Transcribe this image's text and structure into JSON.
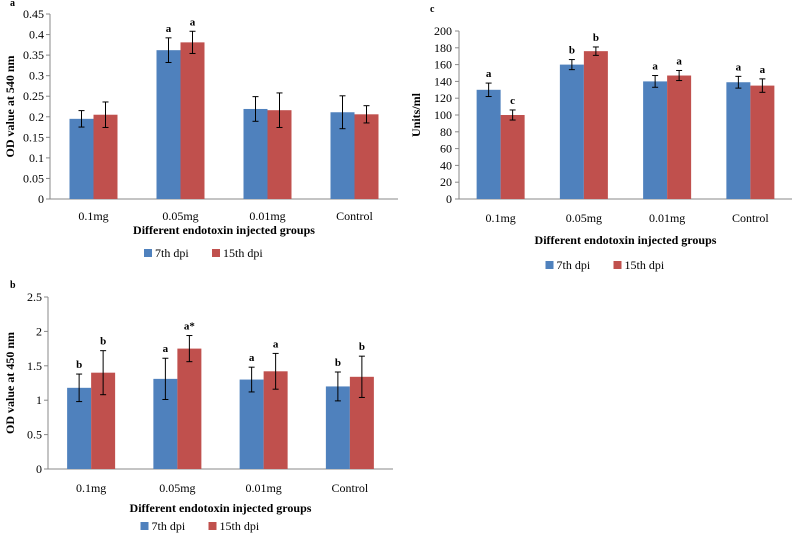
{
  "colors": {
    "series_7th": "#4f81bd",
    "series_15th": "#c0504d",
    "axis": "#888888",
    "error_bar": "#000000"
  },
  "chart_data": [
    {
      "id": "a",
      "type": "bar",
      "panel_label": "a",
      "title": "",
      "xlabel": "Different endotoxin injected groups",
      "ylabel": "OD value at 540 nm",
      "ylim": [
        0,
        0.45
      ],
      "yticks": [
        "0",
        "0.05",
        "0.1",
        "0.15",
        "0.2",
        "0.25",
        "0.3",
        "0.35",
        "0.4",
        "0.45"
      ],
      "grid": false,
      "legend_position": "bottom",
      "categories": [
        "0.1mg",
        "0.05mg",
        "0.01mg",
        "Control"
      ],
      "series": [
        {
          "name": "7th dpi",
          "values": [
            0.195,
            0.362,
            0.219,
            0.211
          ],
          "errors": [
            0.02,
            0.03,
            0.03,
            0.04
          ],
          "labels": [
            "",
            "a",
            "",
            ""
          ]
        },
        {
          "name": "15th dpi",
          "values": [
            0.205,
            0.381,
            0.216,
            0.206
          ],
          "errors": [
            0.031,
            0.027,
            0.042,
            0.021
          ],
          "labels": [
            "",
            "a",
            "",
            ""
          ]
        }
      ]
    },
    {
      "id": "c",
      "type": "bar",
      "panel_label": "c",
      "title": "",
      "xlabel": "Different endotoxin injected groups",
      "ylabel": "Units/ml",
      "ylim": [
        0,
        200
      ],
      "yticks": [
        "0",
        "20",
        "40",
        "60",
        "80",
        "100",
        "120",
        "140",
        "160",
        "180",
        "200"
      ],
      "grid": false,
      "legend_position": "bottom",
      "categories": [
        "0.1mg",
        "0.05mg",
        "0.01mg",
        "Control"
      ],
      "series": [
        {
          "name": "7th dpi",
          "values": [
            130,
            160,
            140,
            139
          ],
          "errors": [
            8,
            6,
            7,
            7
          ],
          "labels": [
            "a",
            "b",
            "a",
            "a"
          ]
        },
        {
          "name": "15th dpi",
          "values": [
            100,
            176,
            147,
            135
          ],
          "errors": [
            6,
            5,
            6,
            8
          ],
          "labels": [
            "c",
            "b",
            "a",
            "a"
          ]
        }
      ]
    },
    {
      "id": "b",
      "type": "bar",
      "panel_label": "b",
      "title": "",
      "xlabel": "Different endotoxin injected groups",
      "ylabel": "OD value at 450 nm",
      "ylim": [
        0,
        2.5
      ],
      "yticks": [
        "0",
        "0.5",
        "1",
        "1.5",
        "2",
        "2.5"
      ],
      "grid": false,
      "legend_position": "bottom",
      "categories": [
        "0.1mg",
        "0.05mg",
        "0.01mg",
        "Control"
      ],
      "series": [
        {
          "name": "7th dpi",
          "values": [
            1.18,
            1.31,
            1.3,
            1.2
          ],
          "errors": [
            0.2,
            0.3,
            0.18,
            0.21
          ],
          "labels": [
            "b",
            "a",
            "a",
            "b"
          ]
        },
        {
          "name": "15th dpi",
          "values": [
            1.4,
            1.75,
            1.42,
            1.34
          ],
          "errors": [
            0.32,
            0.19,
            0.26,
            0.3
          ],
          "labels": [
            "b",
            "a*",
            "a",
            "b"
          ]
        }
      ]
    }
  ]
}
